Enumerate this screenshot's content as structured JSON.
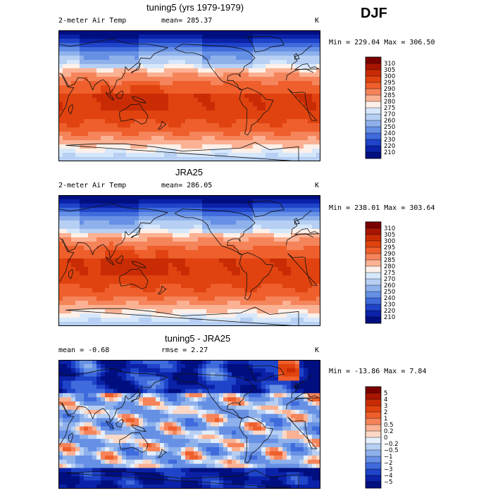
{
  "season": "DJF",
  "panels": [
    {
      "title": "tuning5 (yrs 1979-1979)",
      "variable": "2-meter Air Temp",
      "mean_text": "mean= 285.37",
      "rmse_text": "",
      "units": "K",
      "range_text": "Min = 229.04 Max = 306.50"
    },
    {
      "title": "JRA25",
      "variable": "2-meter Air Temp",
      "mean_text": "mean= 286.05",
      "rmse_text": "",
      "units": "K",
      "range_text": "Min = 238.01 Max = 303.64"
    },
    {
      "title": "tuning5 - JRA25",
      "variable": "",
      "mean_text": "mean =   -0.68",
      "rmse_text": "rmse =    2.27",
      "units": "K",
      "range_text": "Min = -13.86 Max =    7.84"
    }
  ],
  "chart_data": [
    {
      "type": "heatmap",
      "title": "tuning5 (yrs 1979-1979)",
      "subtitle": "2-meter Air Temp",
      "mean": 285.37,
      "min": 229.04,
      "max": 306.5,
      "units": "K",
      "field_style": "absolute",
      "colorbar_labels": [
        "310",
        "305",
        "300",
        "295",
        "290",
        "285",
        "280",
        "275",
        "270",
        "260",
        "250",
        "240",
        "230",
        "220",
        "210"
      ],
      "colorbar_colors": [
        "#7a0000",
        "#a81500",
        "#c92c05",
        "#e0430f",
        "#ee5f2c",
        "#f5845a",
        "#fbb193",
        "#fdf0e8",
        "#d6e7fb",
        "#b6cff3",
        "#8eb1ec",
        "#6690e4",
        "#3f6bdc",
        "#1f44c9",
        "#0b22a8",
        "#000f80"
      ]
    },
    {
      "type": "heatmap",
      "title": "JRA25",
      "subtitle": "2-meter Air Temp",
      "mean": 286.05,
      "min": 238.01,
      "max": 303.64,
      "units": "K",
      "field_style": "absolute",
      "colorbar_labels": [
        "310",
        "305",
        "300",
        "295",
        "290",
        "285",
        "280",
        "275",
        "270",
        "260",
        "250",
        "240",
        "230",
        "220",
        "210"
      ],
      "colorbar_colors": [
        "#7a0000",
        "#a81500",
        "#c92c05",
        "#e0430f",
        "#ee5f2c",
        "#f5845a",
        "#fbb193",
        "#fdf0e8",
        "#d6e7fb",
        "#b6cff3",
        "#8eb1ec",
        "#6690e4",
        "#3f6bdc",
        "#1f44c9",
        "#0b22a8",
        "#000f80"
      ]
    },
    {
      "type": "heatmap",
      "title": "tuning5 - JRA25",
      "subtitle": "",
      "mean": -0.68,
      "rmse": 2.27,
      "min": -13.86,
      "max": 7.84,
      "units": "K",
      "field_style": "difference",
      "colorbar_labels": [
        "5",
        "4",
        "3",
        "2",
        "1",
        "0.5",
        "0.2",
        "0",
        "−0.2",
        "−0.5",
        "−1",
        "−2",
        "−3",
        "−4",
        "−5"
      ],
      "colorbar_colors": [
        "#7a0000",
        "#a81500",
        "#c92c05",
        "#e0430f",
        "#ee5f2c",
        "#f5845a",
        "#fbb193",
        "#fbd8c6",
        "#e4eefc",
        "#b6cff3",
        "#8eb1ec",
        "#6690e4",
        "#3f6bdc",
        "#1f44c9",
        "#0b22a8",
        "#000f80"
      ]
    }
  ]
}
